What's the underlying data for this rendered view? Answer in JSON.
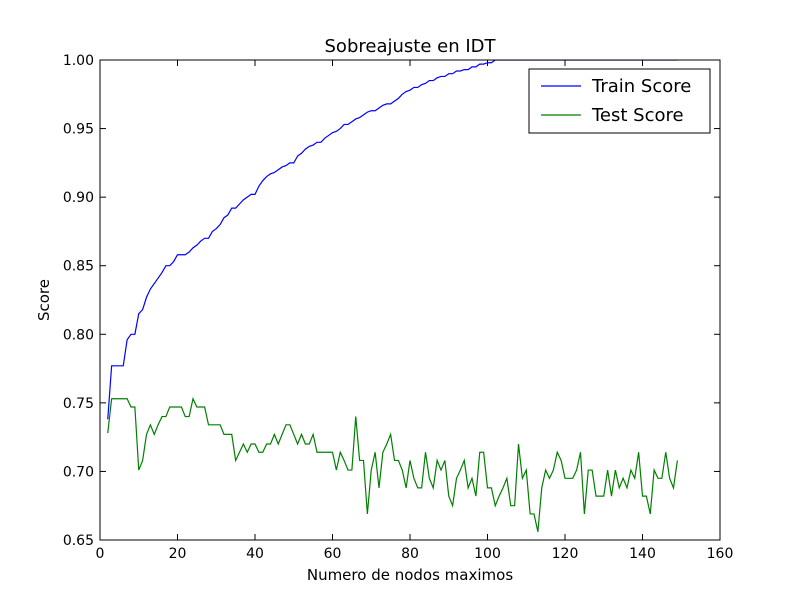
{
  "chart_data": {
    "type": "line",
    "title": "Sobreajuste en IDT",
    "xlabel": "Numero de nodos maximos",
    "ylabel": "Score",
    "xlim": [
      0,
      160
    ],
    "ylim": [
      0.65,
      1.0
    ],
    "xticks": [
      "0",
      "20",
      "40",
      "60",
      "80",
      "100",
      "120",
      "140",
      "160"
    ],
    "yticks": [
      "0.65",
      "0.70",
      "0.75",
      "0.80",
      "0.85",
      "0.90",
      "0.95",
      "1.00"
    ],
    "grid": false,
    "legend_position": "upper right",
    "series": [
      {
        "name": "Train Score",
        "color": "#0000ff",
        "x": [
          2,
          3,
          4,
          5,
          6,
          7,
          8,
          9,
          10,
          11,
          12,
          13,
          14,
          15,
          16,
          17,
          18,
          19,
          20,
          21,
          22,
          23,
          24,
          25,
          26,
          27,
          28,
          29,
          30,
          31,
          32,
          33,
          34,
          35,
          36,
          37,
          38,
          39,
          40,
          41,
          42,
          43,
          44,
          45,
          46,
          47,
          48,
          49,
          50,
          51,
          52,
          53,
          54,
          55,
          56,
          57,
          58,
          59,
          60,
          61,
          62,
          63,
          64,
          65,
          66,
          67,
          68,
          69,
          70,
          71,
          72,
          73,
          74,
          75,
          76,
          77,
          78,
          79,
          80,
          81,
          82,
          83,
          84,
          85,
          86,
          87,
          88,
          89,
          90,
          91,
          92,
          93,
          94,
          95,
          96,
          97,
          98,
          99,
          100,
          101,
          102,
          103,
          104,
          105,
          106,
          107,
          108,
          109,
          110,
          111,
          112,
          113,
          114,
          115,
          116,
          117,
          118,
          119,
          120,
          121,
          122,
          123,
          124,
          125,
          126,
          127,
          128,
          129,
          130,
          131,
          132,
          133,
          134,
          135,
          136,
          137,
          138,
          139,
          140,
          141,
          142,
          143,
          144,
          145,
          146,
          147,
          148,
          149
        ],
        "values": [
          0.738,
          0.777,
          0.777,
          0.777,
          0.777,
          0.796,
          0.8,
          0.8,
          0.815,
          0.818,
          0.827,
          0.833,
          0.837,
          0.841,
          0.845,
          0.85,
          0.85,
          0.853,
          0.858,
          0.858,
          0.858,
          0.86,
          0.863,
          0.865,
          0.868,
          0.87,
          0.87,
          0.875,
          0.877,
          0.88,
          0.885,
          0.887,
          0.892,
          0.892,
          0.895,
          0.898,
          0.9,
          0.902,
          0.902,
          0.908,
          0.912,
          0.915,
          0.917,
          0.918,
          0.92,
          0.922,
          0.923,
          0.925,
          0.925,
          0.93,
          0.932,
          0.935,
          0.937,
          0.938,
          0.94,
          0.94,
          0.943,
          0.945,
          0.947,
          0.948,
          0.95,
          0.953,
          0.953,
          0.955,
          0.957,
          0.958,
          0.96,
          0.962,
          0.963,
          0.963,
          0.965,
          0.967,
          0.968,
          0.968,
          0.97,
          0.972,
          0.975,
          0.977,
          0.978,
          0.98,
          0.98,
          0.982,
          0.983,
          0.985,
          0.985,
          0.987,
          0.988,
          0.988,
          0.99,
          0.99,
          0.992,
          0.992,
          0.993,
          0.993,
          0.995,
          0.995,
          0.997,
          0.997,
          0.998,
          0.998,
          1.0,
          1.0,
          1.0,
          1.0,
          1.0,
          1.0,
          1.0,
          1.0,
          1.0,
          1.0,
          1.0,
          1.0,
          1.0,
          1.0,
          1.0,
          1.0,
          1.0,
          1.0,
          1.0,
          1.0,
          1.0,
          1.0,
          1.0,
          1.0,
          1.0,
          1.0,
          1.0,
          1.0,
          1.0,
          1.0,
          1.0,
          1.0,
          1.0,
          1.0,
          1.0,
          1.0,
          1.0,
          1.0,
          1.0,
          1.0,
          1.0,
          1.0,
          1.0,
          1.0,
          1.0,
          1.0,
          1.0,
          1.0
        ]
      },
      {
        "name": "Test Score",
        "color": "#008000",
        "x": [
          2,
          3,
          4,
          5,
          6,
          7,
          8,
          9,
          10,
          11,
          12,
          13,
          14,
          15,
          16,
          17,
          18,
          19,
          20,
          21,
          22,
          23,
          24,
          25,
          26,
          27,
          28,
          29,
          30,
          31,
          32,
          33,
          34,
          35,
          36,
          37,
          38,
          39,
          40,
          41,
          42,
          43,
          44,
          45,
          46,
          47,
          48,
          49,
          50,
          51,
          52,
          53,
          54,
          55,
          56,
          57,
          58,
          59,
          60,
          61,
          62,
          63,
          64,
          65,
          66,
          67,
          68,
          69,
          70,
          71,
          72,
          73,
          74,
          75,
          76,
          77,
          78,
          79,
          80,
          81,
          82,
          83,
          84,
          85,
          86,
          87,
          88,
          89,
          90,
          91,
          92,
          93,
          94,
          95,
          96,
          97,
          98,
          99,
          100,
          101,
          102,
          103,
          104,
          105,
          106,
          107,
          108,
          109,
          110,
          111,
          112,
          113,
          114,
          115,
          116,
          117,
          118,
          119,
          120,
          121,
          122,
          123,
          124,
          125,
          126,
          127,
          128,
          129,
          130,
          131,
          132,
          133,
          134,
          135,
          136,
          137,
          138,
          139,
          140,
          141,
          142,
          143,
          144,
          145,
          146,
          147,
          148,
          149
        ],
        "values": [
          0.728,
          0.753,
          0.753,
          0.753,
          0.753,
          0.753,
          0.747,
          0.747,
          0.701,
          0.708,
          0.727,
          0.734,
          0.727,
          0.734,
          0.74,
          0.74,
          0.747,
          0.747,
          0.747,
          0.747,
          0.74,
          0.74,
          0.753,
          0.747,
          0.747,
          0.747,
          0.734,
          0.734,
          0.734,
          0.734,
          0.727,
          0.727,
          0.727,
          0.708,
          0.714,
          0.72,
          0.714,
          0.72,
          0.72,
          0.714,
          0.714,
          0.72,
          0.72,
          0.727,
          0.72,
          0.727,
          0.734,
          0.734,
          0.727,
          0.72,
          0.727,
          0.72,
          0.72,
          0.727,
          0.714,
          0.714,
          0.714,
          0.714,
          0.714,
          0.701,
          0.714,
          0.708,
          0.701,
          0.701,
          0.74,
          0.708,
          0.708,
          0.669,
          0.701,
          0.714,
          0.688,
          0.714,
          0.72,
          0.727,
          0.708,
          0.708,
          0.701,
          0.688,
          0.708,
          0.695,
          0.688,
          0.688,
          0.714,
          0.695,
          0.688,
          0.708,
          0.701,
          0.708,
          0.682,
          0.675,
          0.695,
          0.701,
          0.708,
          0.688,
          0.695,
          0.682,
          0.714,
          0.714,
          0.688,
          0.688,
          0.675,
          0.682,
          0.688,
          0.695,
          0.675,
          0.675,
          0.72,
          0.695,
          0.701,
          0.669,
          0.669,
          0.656,
          0.688,
          0.701,
          0.695,
          0.701,
          0.714,
          0.708,
          0.695,
          0.695,
          0.695,
          0.701,
          0.714,
          0.669,
          0.701,
          0.701,
          0.682,
          0.682,
          0.682,
          0.701,
          0.682,
          0.701,
          0.688,
          0.695,
          0.688,
          0.701,
          0.695,
          0.714,
          0.682,
          0.682,
          0.669,
          0.701,
          0.695,
          0.695,
          0.714,
          0.695,
          0.688,
          0.708
        ]
      }
    ]
  }
}
